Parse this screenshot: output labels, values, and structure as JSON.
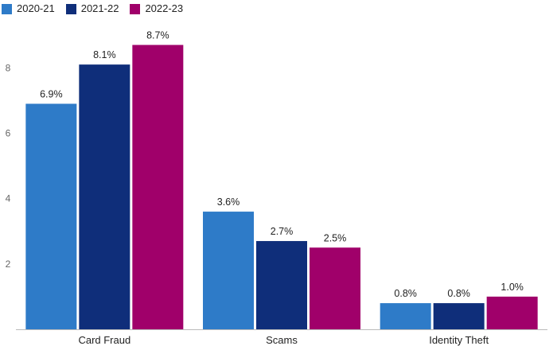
{
  "chart_data": {
    "type": "bar",
    "categories": [
      "Card Fraud",
      "Scams",
      "Identity Theft"
    ],
    "series": [
      {
        "name": "2020-21",
        "color": "#2e7bc8",
        "values": [
          6.9,
          3.6,
          0.8
        ],
        "labels": [
          "6.9%",
          "3.6%",
          "0.8%"
        ]
      },
      {
        "name": "2021-22",
        "color": "#0f2e7a",
        "values": [
          8.1,
          2.7,
          0.8
        ],
        "labels": [
          "8.1%",
          "2.7%",
          "0.8%"
        ]
      },
      {
        "name": "2022-23",
        "color": "#a0006a",
        "values": [
          8.7,
          2.5,
          1.0
        ],
        "labels": [
          "8.7%",
          "2.5%",
          "1.0%"
        ]
      }
    ],
    "yticks": [
      2,
      4,
      6,
      8
    ],
    "ylim": [
      0,
      9.15
    ],
    "grid": false,
    "legend": "top-left"
  }
}
